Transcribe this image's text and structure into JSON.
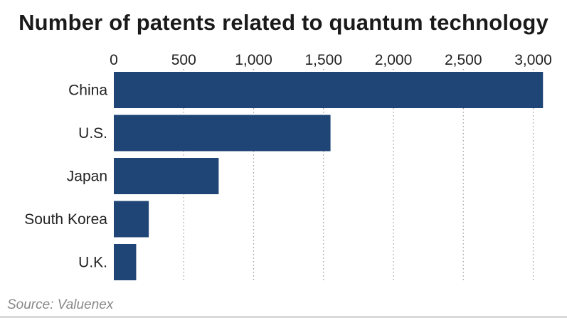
{
  "chart_data": {
    "type": "bar",
    "orientation": "horizontal",
    "title": "Number of patents related to quantum technology",
    "source": "Source: Valuenex",
    "categories": [
      "China",
      "U.S.",
      "Japan",
      "South Korea",
      "U.K."
    ],
    "values": [
      3070,
      1550,
      750,
      250,
      160
    ],
    "xlim": [
      0,
      3000
    ],
    "xticks": [
      0,
      500,
      1000,
      1500,
      2000,
      2500,
      3000
    ],
    "xtick_labels": [
      "0",
      "500",
      "1,000",
      "1,500",
      "2,000",
      "2,500",
      "3,000"
    ],
    "xaxis_position": "top",
    "grid": "vertical-dotted",
    "legend": "none",
    "bar_color": "#1f4476"
  }
}
